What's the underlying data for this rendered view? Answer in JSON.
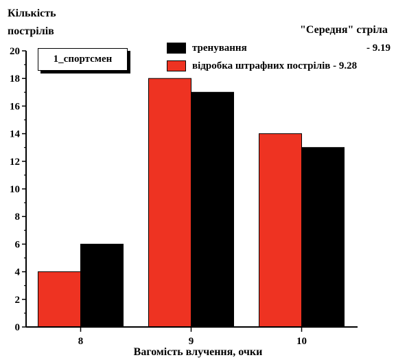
{
  "chart_data": {
    "type": "bar",
    "categories": [
      "8",
      "9",
      "10"
    ],
    "series": [
      {
        "name": "відробка штрафних пострілів",
        "values": [
          4,
          18,
          14
        ],
        "color": "#ee3322"
      },
      {
        "name": "тренування",
        "values": [
          6,
          17,
          13
        ],
        "color": "#000000"
      }
    ],
    "xlabel": "Вагомість влучення, очки",
    "ylabel_line1": "Кількість",
    "ylabel_line2": "пострілів",
    "ylim": [
      0,
      20
    ],
    "yticks": [
      0,
      2,
      4,
      6,
      8,
      10,
      12,
      14,
      16,
      18,
      20
    ],
    "grid": false,
    "annotation": "\"Середня\" стріла",
    "badge": "1_спортсмен",
    "legend": [
      {
        "label": "тренування",
        "value": "- 9.19",
        "color": "#000000"
      },
      {
        "label": "відробка штрафних пострілів",
        "value": "- 9.28",
        "color": "#ee3322"
      }
    ]
  }
}
